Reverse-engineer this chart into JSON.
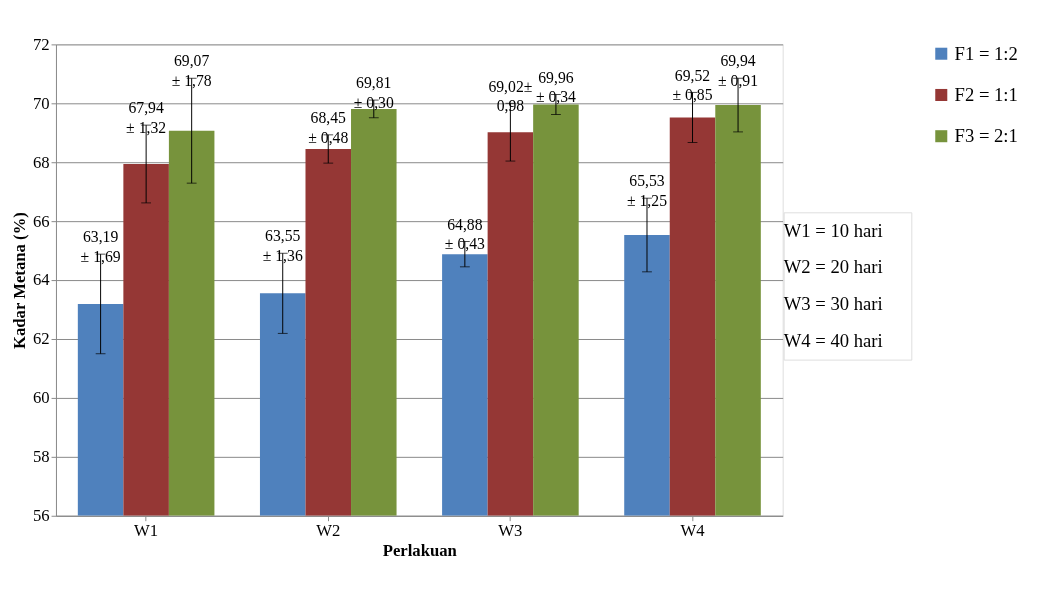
{
  "chart_data": {
    "type": "bar",
    "xlabel": "Perlakuan",
    "ylabel": "Kadar Metana (%)",
    "categories": [
      "W1",
      "W2",
      "W3",
      "W4"
    ],
    "series": [
      {
        "name": "F1 = 1:2",
        "color": "#4f81bd",
        "values": [
          63.19,
          63.55,
          64.88,
          65.53
        ],
        "errors": [
          1.69,
          1.36,
          0.43,
          1.25
        ],
        "value_labels": [
          "63,19\n± 1,69",
          "63,55\n± 1,36",
          "64,88\n± 0,43",
          "65,53\n± 1,25"
        ]
      },
      {
        "name": "F2 = 1:1",
        "color": "#953735",
        "values": [
          67.94,
          68.45,
          69.02,
          69.52
        ],
        "errors": [
          1.32,
          0.48,
          0.98,
          0.85
        ],
        "value_labels": [
          "67,94\n± 1,32",
          "68,45\n± 0,48",
          "69,02±\n0,98",
          "69,52\n± 0,85"
        ]
      },
      {
        "name": "F3 = 2:1",
        "color": "#77933c",
        "values": [
          69.07,
          69.81,
          69.96,
          69.94
        ],
        "errors": [
          1.78,
          0.3,
          0.34,
          0.91
        ],
        "value_labels": [
          "69,07\n± 1,78",
          "69,81\n± 0,30",
          "69,96\n± 0,34",
          "69,94\n± 0,91"
        ]
      }
    ],
    "ylim": [
      56,
      72
    ],
    "yticks": [
      56,
      58,
      60,
      62,
      64,
      66,
      68,
      70,
      72
    ],
    "grid": "y",
    "legend": "right",
    "annotations": [
      "W1 = 10 hari",
      "W2 = 20 hari",
      "W3 = 30 hari",
      "W4 = 40 hari"
    ]
  }
}
